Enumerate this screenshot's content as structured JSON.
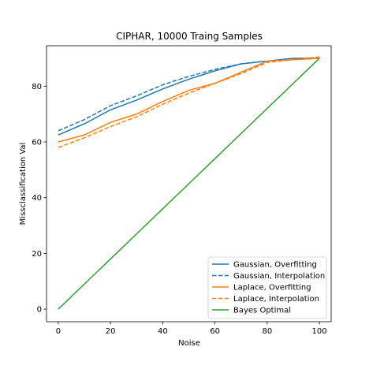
{
  "chart_data": {
    "type": "line",
    "title": "CIPHAR, 10000 Traing Samples",
    "xlabel": "Noise",
    "ylabel": "Missclassification Val",
    "xlim": [
      -4.5,
      104.5
    ],
    "ylim": [
      -4.5,
      94.5
    ],
    "xticks": [
      0,
      20,
      40,
      60,
      80,
      100
    ],
    "yticks": [
      0,
      20,
      40,
      60,
      80
    ],
    "grid": false,
    "legend_position": "lower-right",
    "x": [
      0,
      10,
      20,
      30,
      40,
      50,
      60,
      70,
      80,
      90,
      100
    ],
    "series": [
      {
        "name": "Gaussian, Overfitting",
        "color": "#1f77b4",
        "dash": "solid",
        "values": [
          62.5,
          66.5,
          71.5,
          75,
          79,
          82.5,
          85.5,
          88,
          89,
          90,
          90
        ]
      },
      {
        "name": "Gaussian, Interpolation",
        "color": "#1f77b4",
        "dash": "dashed",
        "values": [
          64,
          68,
          73,
          76.5,
          80.5,
          83.5,
          86,
          88,
          89,
          89.5,
          90
        ]
      },
      {
        "name": "Laplace, Overfitting",
        "color": "#ff7f0e",
        "dash": "solid",
        "values": [
          60,
          62.5,
          67,
          70,
          74.5,
          78.5,
          81,
          85,
          89,
          89.5,
          90
        ]
      },
      {
        "name": "Laplace, Interpolation",
        "color": "#ff7f0e",
        "dash": "dashed",
        "values": [
          58,
          61.5,
          65.5,
          69,
          73.5,
          77.5,
          81,
          84.5,
          88.5,
          89.5,
          90.5
        ]
      },
      {
        "name": "Bayes Optimal",
        "color": "#2ca02c",
        "dash": "solid",
        "values": [
          0,
          9,
          18,
          27,
          36,
          45,
          54,
          63,
          72,
          81,
          90
        ]
      }
    ]
  }
}
